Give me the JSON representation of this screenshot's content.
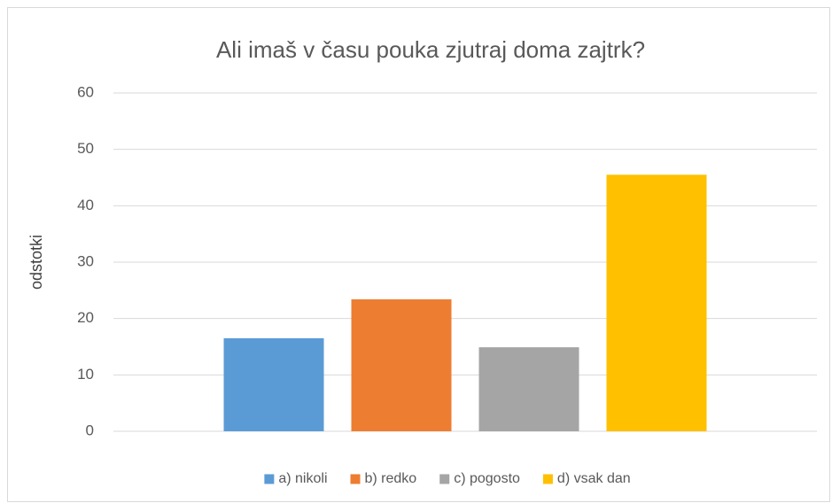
{
  "chart_data": {
    "type": "bar",
    "title": "Ali imaš v času pouka zjutraj doma zajtrk?",
    "y_label": "odstotki",
    "categories": [
      null
    ],
    "series": [
      {
        "name": "a) nikoli",
        "color": "#5b9bd5",
        "values": [
          16.5
        ]
      },
      {
        "name": "b) redko",
        "color": "#ed7d31",
        "values": [
          23.4
        ]
      },
      {
        "name": "c) pogosto",
        "color": "#a5a5a5",
        "values": [
          14.9
        ]
      },
      {
        "name": "d) vsak dan",
        "color": "#ffc000",
        "values": [
          45.5
        ]
      }
    ],
    "ylim": [
      0,
      60
    ],
    "yticks": [
      0,
      10,
      20,
      30,
      40,
      50,
      60
    ],
    "grid": true,
    "legend": "bottom"
  }
}
